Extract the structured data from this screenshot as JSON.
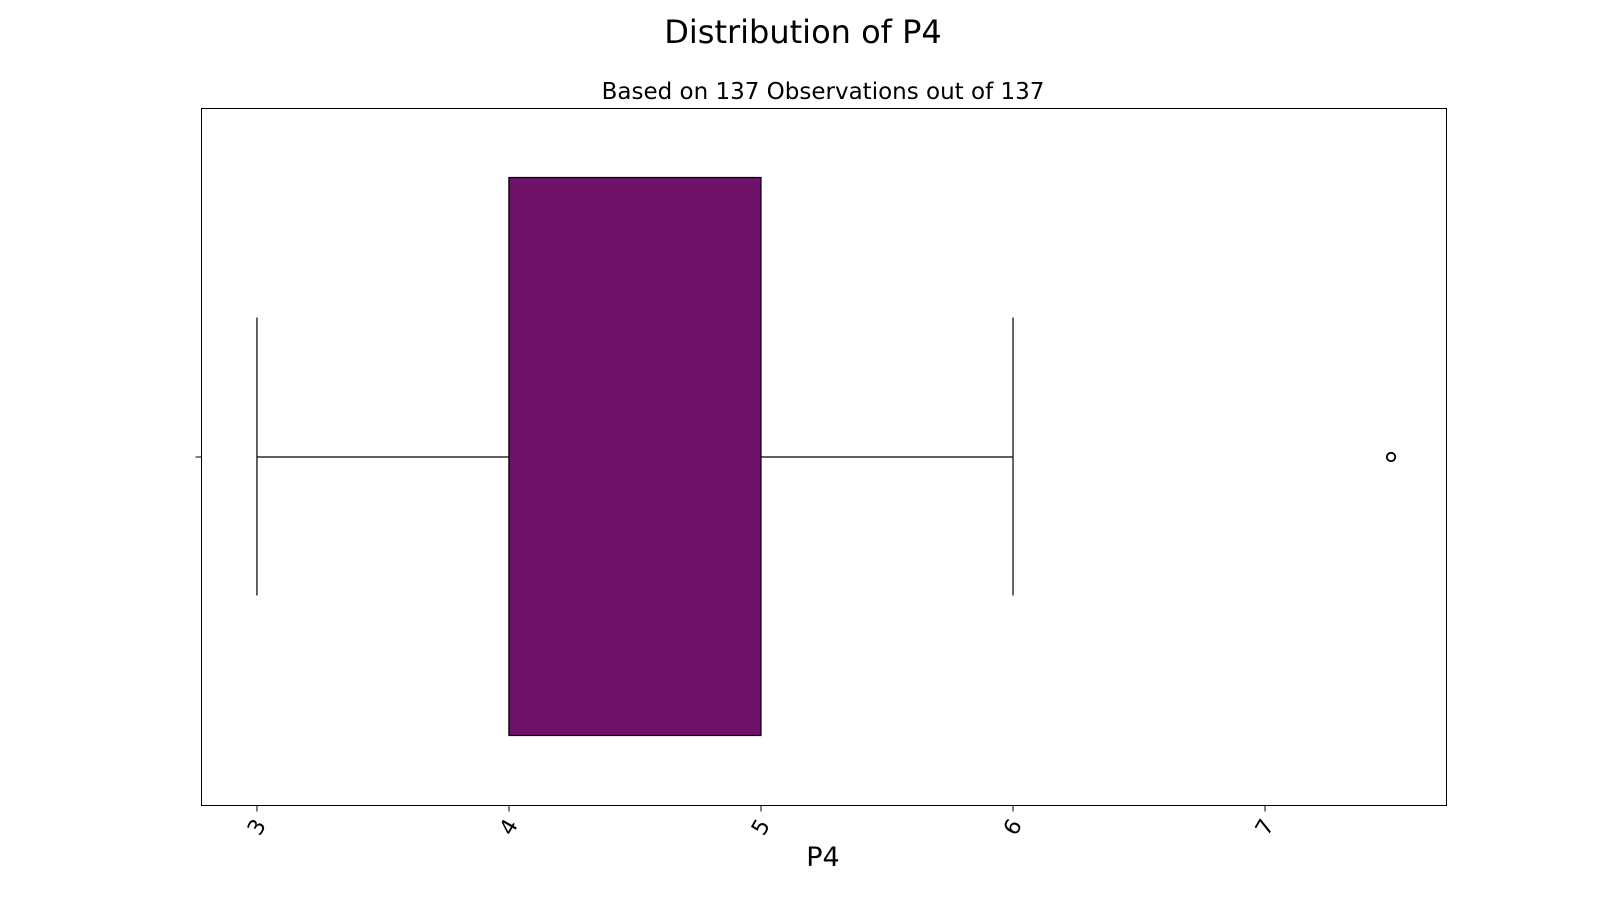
{
  "chart_data": {
    "type": "box",
    "title": "Distribution of P4",
    "subtitle": "Based on 137 Observations out of 137",
    "xlabel": "P4",
    "ylabel": "",
    "xlim": [
      2.78,
      7.72
    ],
    "xticks": [
      3,
      4,
      5,
      6,
      7
    ],
    "xtick_labels": [
      "3",
      "4",
      "5",
      "6",
      "7"
    ],
    "xtick_rotation_deg": 60,
    "grid": false,
    "orientation": "horizontal",
    "box": {
      "whisker_low": 3,
      "q1": 4,
      "median": 4,
      "q3": 5,
      "whisker_high": 6,
      "outliers": [
        7.5
      ]
    },
    "box_color": "#6f1069",
    "line_color": "#000000"
  }
}
